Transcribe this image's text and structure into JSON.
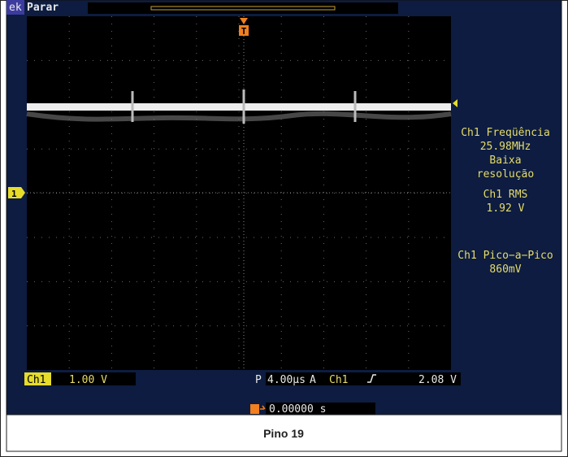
{
  "status": {
    "brand": "ek",
    "state": "Parar"
  },
  "markers": {
    "trigger": "T",
    "channel": "1"
  },
  "measurements": [
    {
      "label": "Ch1 Freqüência",
      "value": "25.98MHz",
      "note": [
        "Baixa",
        "resolução"
      ]
    },
    {
      "label": "Ch1 RMS",
      "value": "1.92 V"
    },
    {
      "label": "Ch1 Pico−a−Pico",
      "value": "860mV"
    }
  ],
  "readout": {
    "channel": "Ch1",
    "scale": "1.00 V",
    "time_prefix": "P",
    "time_scale": "4.00µs",
    "trigger_mode": "A",
    "trigger_channel": "Ch1",
    "trigger_level": "2.08 V",
    "position": "0.00000 s"
  },
  "caption": "Pino 19"
}
